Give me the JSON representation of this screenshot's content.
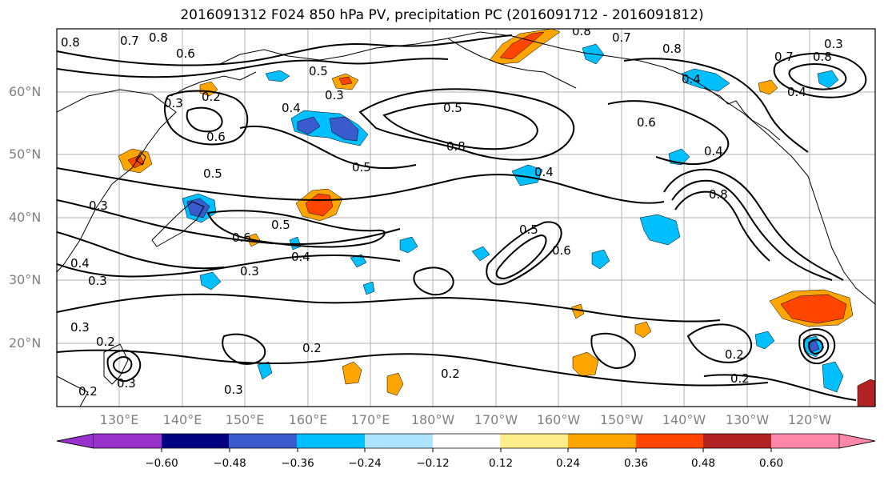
{
  "title": "2016091312 F024 850 hPa PV, precipitation PC (2016091712 - 2016091812)",
  "lat_labels": [
    "60°N",
    "50°N",
    "40°N",
    "30°N",
    "20°N"
  ],
  "lon_labels": [
    "130°E",
    "140°E",
    "150°E",
    "160°E",
    "170°E",
    "180°W",
    "170°W",
    "160°W",
    "150°W",
    "140°W",
    "130°W",
    "120°W"
  ],
  "colorbar": {
    "ticks": [
      "−0.60",
      "−0.48",
      "−0.36",
      "−0.24",
      "−0.12",
      "0.12",
      "0.24",
      "0.36",
      "0.48",
      "0.60"
    ],
    "colors": [
      "#9932CC",
      "#000080",
      "#3A5BCD",
      "#00BFFF",
      "#AEE4FF",
      "#FFFFFF",
      "#FFEC8B",
      "#FFA500",
      "#FF4500",
      "#B22222",
      "#FF88AA"
    ]
  },
  "contour_labels": [
    "0.8",
    "0.7",
    "0.6",
    "0.8",
    "0.3",
    "0.2",
    "0.5",
    "0.3",
    "0.6",
    "0.4",
    "0.5",
    "0.5",
    "0.8",
    "0.6",
    "0.4",
    "0.8",
    "0.5",
    "0.3",
    "0.4",
    "0.6",
    "0.3",
    "0.5",
    "0.6",
    "0.4",
    "0.3",
    "0.5",
    "0.3",
    "0.4",
    "0.8",
    "0.4",
    "0.8",
    "0.7",
    "0.8",
    "0.3",
    "0.7",
    "0.4",
    "0.2",
    "0.3",
    "0.2",
    "0.2",
    "0.2",
    "0.2",
    "0.3",
    "0.2"
  ]
}
